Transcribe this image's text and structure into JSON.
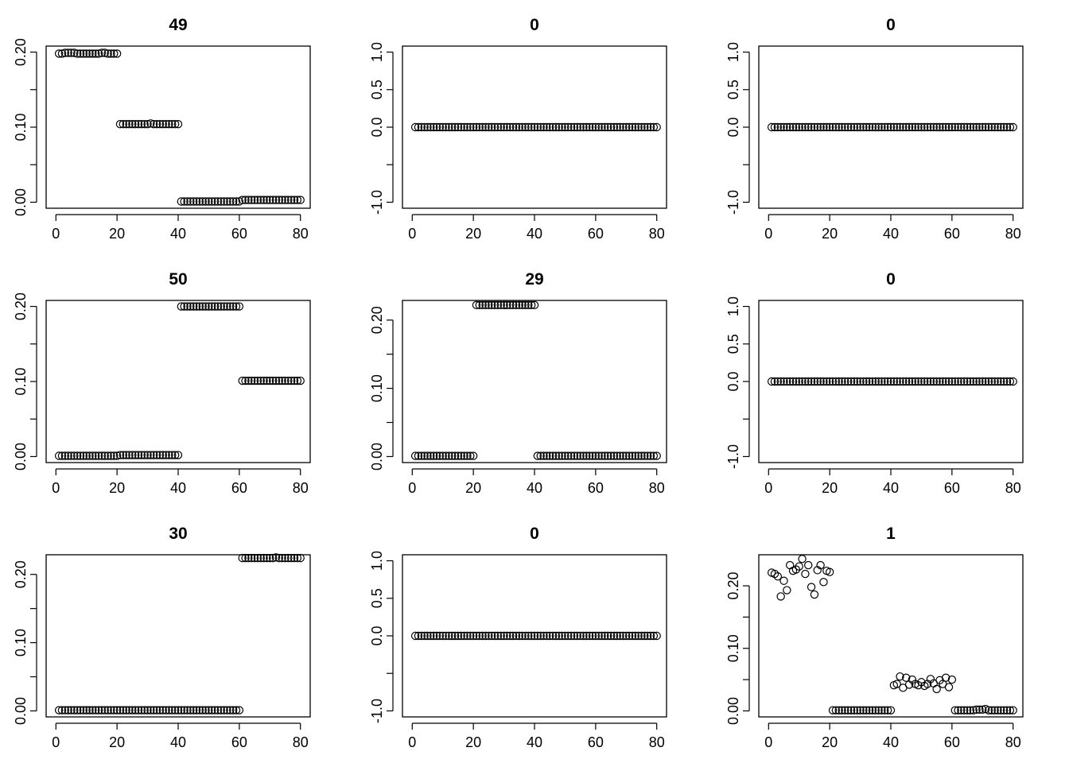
{
  "chart_data": [
    {
      "type": "scatter",
      "title": "49",
      "x": {
        "from": 1,
        "to": 80
      },
      "xlim": [
        0,
        80
      ],
      "xticks": [
        0,
        20,
        40,
        60,
        80
      ],
      "ylim": [
        0,
        0.2
      ],
      "yticks": [
        0,
        0.05,
        0.1,
        0.15,
        0.2
      ],
      "ytick_labels": [
        "0.00",
        "",
        "0.10",
        "",
        "0.20"
      ],
      "y": [
        0.198,
        0.198,
        0.199,
        0.199,
        0.199,
        0.199,
        0.198,
        0.198,
        0.198,
        0.198,
        0.198,
        0.198,
        0.198,
        0.198,
        0.199,
        0.199,
        0.198,
        0.198,
        0.198,
        0.198,
        0.104,
        0.104,
        0.104,
        0.104,
        0.104,
        0.104,
        0.104,
        0.104,
        0.104,
        0.104,
        0.105,
        0.104,
        0.104,
        0.104,
        0.104,
        0.104,
        0.104,
        0.104,
        0.104,
        0.104,
        0.001,
        0.001,
        0.001,
        0.001,
        0.001,
        0.001,
        0.001,
        0.001,
        0.001,
        0.001,
        0.001,
        0.001,
        0.001,
        0.001,
        0.001,
        0.001,
        0.001,
        0.001,
        0.001,
        0.001,
        0.003,
        0.003,
        0.003,
        0.003,
        0.003,
        0.003,
        0.003,
        0.003,
        0.003,
        0.003,
        0.003,
        0.003,
        0.003,
        0.003,
        0.003,
        0.003,
        0.003,
        0.003,
        0.003,
        0.003
      ]
    },
    {
      "type": "scatter",
      "title": "0",
      "x": {
        "from": 1,
        "to": 80
      },
      "xlim": [
        0,
        80
      ],
      "xticks": [
        0,
        20,
        40,
        60,
        80
      ],
      "ylim": [
        -1,
        1
      ],
      "yticks": [
        -1,
        -0.5,
        0,
        0.5,
        1
      ],
      "ytick_labels": [
        "-1.0",
        "",
        "0.0",
        "0.5",
        "1.0"
      ],
      "y_const": 0
    },
    {
      "type": "scatter",
      "title": "0",
      "x": {
        "from": 1,
        "to": 80
      },
      "xlim": [
        0,
        80
      ],
      "xticks": [
        0,
        20,
        40,
        60,
        80
      ],
      "ylim": [
        -1,
        1
      ],
      "yticks": [
        -1,
        -0.5,
        0,
        0.5,
        1
      ],
      "ytick_labels": [
        "-1.0",
        "",
        "0.0",
        "0.5",
        "1.0"
      ],
      "y_const": 0
    },
    {
      "type": "scatter",
      "title": "50",
      "x": {
        "from": 1,
        "to": 80
      },
      "xlim": [
        0,
        80
      ],
      "xticks": [
        0,
        20,
        40,
        60,
        80
      ],
      "ylim": [
        0,
        0.2
      ],
      "yticks": [
        0,
        0.05,
        0.1,
        0.15,
        0.2
      ],
      "ytick_labels": [
        "0.00",
        "",
        "0.10",
        "",
        "0.20"
      ],
      "y": [
        0.001,
        0.001,
        0.001,
        0.001,
        0.001,
        0.001,
        0.001,
        0.001,
        0.001,
        0.001,
        0.001,
        0.001,
        0.001,
        0.001,
        0.001,
        0.001,
        0.001,
        0.001,
        0.001,
        0.001,
        0.002,
        0.002,
        0.002,
        0.002,
        0.002,
        0.002,
        0.002,
        0.002,
        0.002,
        0.002,
        0.002,
        0.002,
        0.002,
        0.002,
        0.002,
        0.002,
        0.002,
        0.002,
        0.002,
        0.002,
        0.2,
        0.2,
        0.2,
        0.2,
        0.2,
        0.2,
        0.2,
        0.2,
        0.2,
        0.2,
        0.2,
        0.2,
        0.2,
        0.2,
        0.2,
        0.2,
        0.2,
        0.2,
        0.2,
        0.2,
        0.101,
        0.101,
        0.101,
        0.101,
        0.101,
        0.101,
        0.101,
        0.101,
        0.101,
        0.101,
        0.101,
        0.101,
        0.101,
        0.101,
        0.101,
        0.101,
        0.101,
        0.101,
        0.101,
        0.101
      ]
    },
    {
      "type": "scatter",
      "title": "29",
      "x": {
        "from": 1,
        "to": 80
      },
      "xlim": [
        0,
        80
      ],
      "xticks": [
        0,
        20,
        40,
        60,
        80
      ],
      "ylim": [
        0,
        0.22
      ],
      "yticks": [
        0,
        0.05,
        0.1,
        0.15,
        0.2
      ],
      "ytick_labels": [
        "0.00",
        "",
        "0.10",
        "",
        "0.20"
      ],
      "y": [
        0.001,
        0.001,
        0.001,
        0.001,
        0.001,
        0.001,
        0.001,
        0.001,
        0.001,
        0.001,
        0.001,
        0.001,
        0.001,
        0.001,
        0.001,
        0.001,
        0.001,
        0.001,
        0.001,
        0.001,
        0.222,
        0.222,
        0.222,
        0.222,
        0.222,
        0.222,
        0.222,
        0.222,
        0.222,
        0.222,
        0.222,
        0.222,
        0.222,
        0.222,
        0.222,
        0.222,
        0.222,
        0.222,
        0.222,
        0.222,
        0.001,
        0.001,
        0.001,
        0.001,
        0.001,
        0.001,
        0.001,
        0.001,
        0.001,
        0.001,
        0.001,
        0.001,
        0.001,
        0.001,
        0.001,
        0.001,
        0.001,
        0.001,
        0.001,
        0.001,
        0.001,
        0.001,
        0.001,
        0.001,
        0.001,
        0.001,
        0.001,
        0.001,
        0.001,
        0.001,
        0.001,
        0.001,
        0.001,
        0.001,
        0.001,
        0.001,
        0.001,
        0.001,
        0.001,
        0.001
      ]
    },
    {
      "type": "scatter",
      "title": "0",
      "x": {
        "from": 1,
        "to": 80
      },
      "xlim": [
        0,
        80
      ],
      "xticks": [
        0,
        20,
        40,
        60,
        80
      ],
      "ylim": [
        -1,
        1
      ],
      "yticks": [
        -1,
        -0.5,
        0,
        0.5,
        1
      ],
      "ytick_labels": [
        "-1.0",
        "",
        "0.0",
        "0.5",
        "1.0"
      ],
      "y_const": 0
    },
    {
      "type": "scatter",
      "title": "30",
      "x": {
        "from": 1,
        "to": 80
      },
      "xlim": [
        0,
        80
      ],
      "xticks": [
        0,
        20,
        40,
        60,
        80
      ],
      "ylim": [
        0,
        0.22
      ],
      "yticks": [
        0,
        0.05,
        0.1,
        0.15,
        0.2
      ],
      "ytick_labels": [
        "0.00",
        "",
        "0.10",
        "",
        "0.20"
      ],
      "y": [
        0.001,
        0.001,
        0.001,
        0.001,
        0.001,
        0.001,
        0.001,
        0.001,
        0.001,
        0.001,
        0.001,
        0.001,
        0.001,
        0.001,
        0.001,
        0.001,
        0.001,
        0.001,
        0.001,
        0.001,
        0.001,
        0.001,
        0.001,
        0.001,
        0.001,
        0.001,
        0.001,
        0.001,
        0.001,
        0.001,
        0.001,
        0.001,
        0.001,
        0.001,
        0.001,
        0.001,
        0.001,
        0.001,
        0.001,
        0.001,
        0.001,
        0.001,
        0.001,
        0.001,
        0.001,
        0.001,
        0.001,
        0.001,
        0.001,
        0.001,
        0.001,
        0.001,
        0.001,
        0.001,
        0.001,
        0.001,
        0.001,
        0.001,
        0.001,
        0.001,
        0.224,
        0.224,
        0.224,
        0.224,
        0.224,
        0.224,
        0.224,
        0.224,
        0.224,
        0.224,
        0.224,
        0.225,
        0.224,
        0.224,
        0.224,
        0.224,
        0.224,
        0.224,
        0.224,
        0.224
      ]
    },
    {
      "type": "scatter",
      "title": "0",
      "x": {
        "from": 1,
        "to": 80
      },
      "xlim": [
        0,
        80
      ],
      "xticks": [
        0,
        20,
        40,
        60,
        80
      ],
      "ylim": [
        -1,
        1
      ],
      "yticks": [
        -1,
        -0.5,
        0,
        0.5,
        1
      ],
      "ytick_labels": [
        "-1.0",
        "",
        "0.0",
        "0.5",
        "1.0"
      ],
      "y_const": 0
    },
    {
      "type": "scatter",
      "title": "1",
      "x": {
        "from": 1,
        "to": 80
      },
      "xlim": [
        0,
        80
      ],
      "xticks": [
        0,
        20,
        40,
        60,
        80
      ],
      "ylim": [
        0,
        0.24
      ],
      "yticks": [
        0,
        0.05,
        0.1,
        0.15,
        0.2
      ],
      "ytick_labels": [
        "0.00",
        "",
        "0.10",
        "",
        "0.20"
      ],
      "y": [
        0.221,
        0.219,
        0.215,
        0.183,
        0.208,
        0.193,
        0.233,
        0.224,
        0.226,
        0.231,
        0.243,
        0.219,
        0.233,
        0.198,
        0.186,
        0.225,
        0.233,
        0.206,
        0.224,
        0.222,
        0.001,
        0.001,
        0.001,
        0.001,
        0.001,
        0.001,
        0.001,
        0.001,
        0.001,
        0.001,
        0.001,
        0.001,
        0.001,
        0.001,
        0.001,
        0.001,
        0.001,
        0.001,
        0.001,
        0.001,
        0.041,
        0.043,
        0.055,
        0.037,
        0.053,
        0.042,
        0.05,
        0.043,
        0.041,
        0.046,
        0.04,
        0.043,
        0.051,
        0.044,
        0.035,
        0.049,
        0.043,
        0.053,
        0.038,
        0.05,
        0.001,
        0.001,
        0.001,
        0.001,
        0.001,
        0.001,
        0.001,
        0.002,
        0.002,
        0.002,
        0.003,
        0.001,
        0.001,
        0.001,
        0.001,
        0.001,
        0.001,
        0.001,
        0.001,
        0.001
      ]
    }
  ]
}
